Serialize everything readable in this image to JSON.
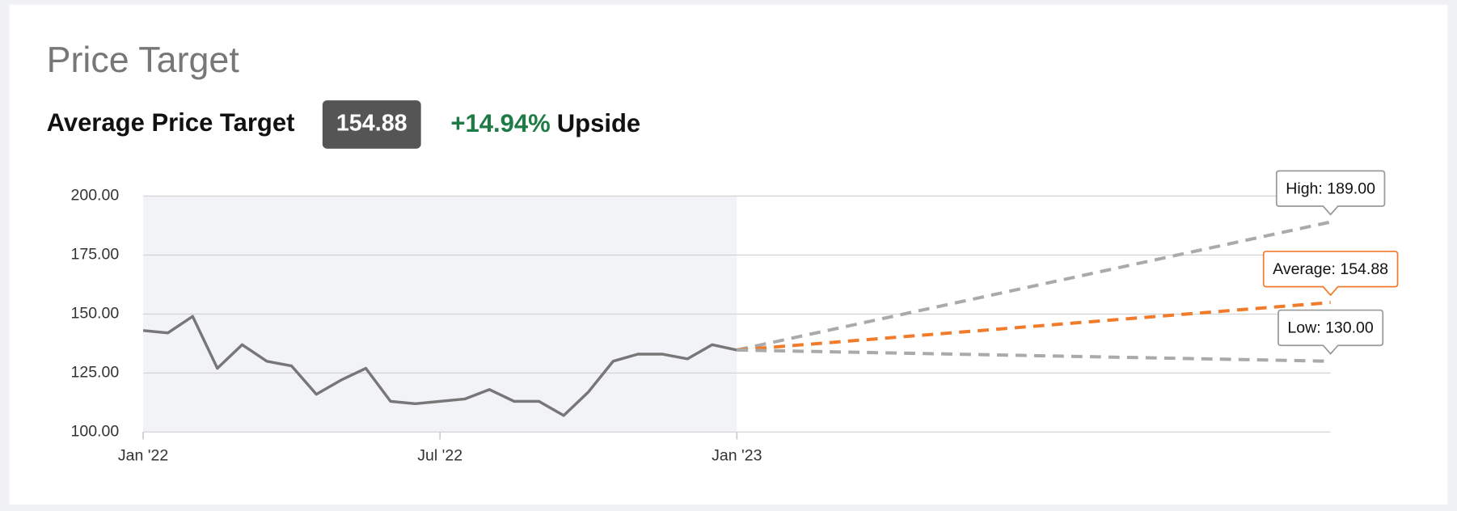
{
  "header": {
    "title": "Price Target",
    "subtitle": "Average Price Target",
    "badge": "154.88",
    "change": "+14.94%",
    "change_suffix": "Upside"
  },
  "chart_data": {
    "type": "line",
    "xlim": [
      0,
      24
    ],
    "xticks": [
      {
        "value": 0,
        "label": "Jan '22"
      },
      {
        "value": 6,
        "label": "Jul '22"
      },
      {
        "value": 12,
        "label": "Jan '23"
      }
    ],
    "ylim": [
      100,
      200
    ],
    "yticks": [
      {
        "value": 100,
        "label": "100.00"
      },
      {
        "value": 125,
        "label": "125.00"
      },
      {
        "value": 150,
        "label": "150.00"
      },
      {
        "value": 175,
        "label": "175.00"
      },
      {
        "value": 200,
        "label": "200.00"
      }
    ],
    "grid": true,
    "series": [
      {
        "color": "#777777",
        "x": [
          0,
          0.5,
          1,
          1.5,
          2,
          2.5,
          3,
          3.5,
          4,
          4.5,
          5,
          5.5,
          6,
          6.5,
          7,
          7.5,
          8,
          8.5,
          9,
          9.5,
          10,
          10.5,
          11,
          11.5,
          12
        ],
        "values": [
          143,
          142,
          149,
          127,
          137,
          130,
          128,
          116,
          122,
          127,
          113,
          112,
          113,
          114,
          118,
          113,
          113,
          107,
          117,
          130,
          133,
          133,
          131,
          137,
          134.75
        ]
      },
      {
        "name": "High",
        "label": "High: 189.00",
        "color": "#aaaaaa",
        "dashed": true,
        "x": [
          12,
          24
        ],
        "values": [
          134.75,
          189
        ]
      },
      {
        "name": "Average",
        "label": "Average: 154.88",
        "color": "#f07b2a",
        "dashed": true,
        "x": [
          12,
          24
        ],
        "values": [
          134.75,
          154.88
        ]
      },
      {
        "name": "Low",
        "label": "Low: 130.00",
        "color": "#aaaaaa",
        "dashed": true,
        "x": [
          12,
          24
        ],
        "values": [
          134.75,
          130
        ]
      }
    ]
  }
}
